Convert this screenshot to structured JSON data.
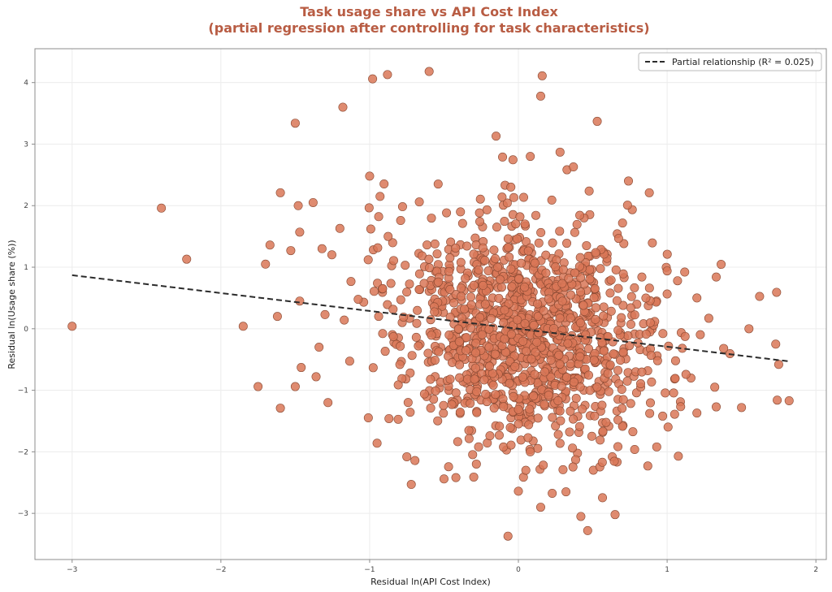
{
  "chart_data": {
    "type": "scatter",
    "title_line1": "Task usage share vs API Cost Index",
    "title_line2": "(partial regression after controlling for task characteristics)",
    "xlabel": "Residual ln(API Cost Index)",
    "ylabel": "Residual ln(Usage share (%))",
    "xlim": [
      -3.25,
      2.07
    ],
    "ylim": [
      -3.75,
      4.55
    ],
    "xticks": [
      -3,
      -2,
      -1,
      0,
      1,
      2
    ],
    "xtick_labels": [
      "−3",
      "−2",
      "−1",
      "0",
      "1",
      "2"
    ],
    "yticks": [
      -3,
      -2,
      -1,
      0,
      1,
      2,
      3,
      4
    ],
    "ytick_labels": [
      "−3",
      "−2",
      "−1",
      "0",
      "1",
      "2",
      "3",
      "4"
    ],
    "grid": true,
    "legend": {
      "position": "top-right",
      "label": "Partial relationship (R² = 0.025)"
    },
    "trendline": {
      "x": [
        -3.0,
        1.82
      ],
      "y": [
        0.87,
        -0.53
      ]
    },
    "point_color": "#d97757",
    "point_edge_color": "#8a4a33",
    "trend_color": "#2b2b2b",
    "title_color": "#b85c43",
    "cloud_generator": {
      "count": 1200,
      "x_mean": 0.05,
      "x_sd": 0.45,
      "y_mean": -0.05,
      "y_sd": 0.95,
      "slope": -0.29,
      "seed": 42
    },
    "points": [
      [
        -3.0,
        0.04
      ],
      [
        -2.4,
        1.96
      ],
      [
        -2.23,
        1.13
      ],
      [
        -1.85,
        0.04
      ],
      [
        -1.75,
        -0.94
      ],
      [
        -1.7,
        1.05
      ],
      [
        -1.67,
        1.36
      ],
      [
        -1.62,
        0.2
      ],
      [
        -1.6,
        2.21
      ],
      [
        -1.6,
        -1.29
      ],
      [
        -1.53,
        1.27
      ],
      [
        -1.5,
        3.34
      ],
      [
        -1.5,
        -0.94
      ],
      [
        -1.48,
        2.0
      ],
      [
        -1.47,
        1.57
      ],
      [
        -1.47,
        0.45
      ],
      [
        -1.46,
        -0.63
      ],
      [
        -1.38,
        2.05
      ],
      [
        -1.36,
        -0.78
      ],
      [
        -1.34,
        -0.3
      ],
      [
        -1.32,
        1.3
      ],
      [
        -1.3,
        0.23
      ],
      [
        -1.28,
        -1.2
      ],
      [
        -1.18,
        3.6
      ],
      [
        -1.2,
        1.63
      ],
      [
        -1.0,
        2.48
      ],
      [
        -0.98,
        4.06
      ],
      [
        -0.88,
        4.13
      ],
      [
        -0.6,
        4.18
      ],
      [
        -0.93,
        2.15
      ],
      [
        -0.95,
        -1.86
      ],
      [
        -0.87,
        -1.46
      ],
      [
        -0.75,
        -2.08
      ],
      [
        -0.72,
        -2.53
      ],
      [
        -0.5,
        -2.44
      ],
      [
        -0.3,
        -2.41
      ],
      [
        0.0,
        -2.64
      ],
      [
        0.05,
        -2.3
      ],
      [
        -0.07,
        -3.37
      ],
      [
        0.08,
        -2.0
      ],
      [
        0.15,
        -2.9
      ],
      [
        0.3,
        -2.29
      ],
      [
        0.32,
        -2.65
      ],
      [
        0.42,
        -3.05
      ],
      [
        0.65,
        -3.02
      ],
      [
        0.87,
        -2.23
      ],
      [
        0.15,
        3.78
      ],
      [
        0.16,
        4.11
      ],
      [
        0.53,
        3.37
      ],
      [
        -0.15,
        3.13
      ],
      [
        0.08,
        2.8
      ],
      [
        0.28,
        2.87
      ],
      [
        0.37,
        2.63
      ],
      [
        0.74,
        2.4
      ],
      [
        0.88,
        2.21
      ],
      [
        0.83,
        0.84
      ],
      [
        1.0,
        0.94
      ],
      [
        1.07,
        0.78
      ],
      [
        1.2,
        0.5
      ],
      [
        1.28,
        0.17
      ],
      [
        1.33,
        0.84
      ],
      [
        1.55,
        -0.0
      ],
      [
        1.73,
        -0.25
      ],
      [
        1.75,
        -0.58
      ],
      [
        1.82,
        -1.17
      ],
      [
        1.74,
        -1.16
      ],
      [
        1.5,
        -1.28
      ],
      [
        1.32,
        -0.95
      ],
      [
        1.33,
        -1.27
      ],
      [
        1.38,
        -0.32
      ],
      [
        0.97,
        -1.42
      ],
      [
        1.2,
        -1.37
      ],
      [
        0.93,
        -1.92
      ]
    ]
  }
}
